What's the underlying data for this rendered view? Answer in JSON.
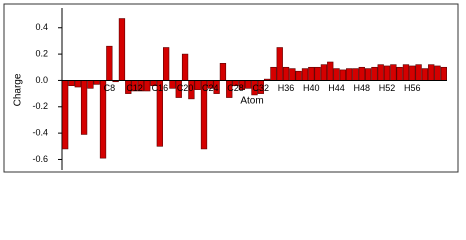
{
  "chart_data": {
    "type": "bar",
    "y_label": "Charge",
    "x_label": "Atom",
    "color": "#d40000",
    "categories": [
      null,
      null,
      null,
      null,
      null,
      null,
      null,
      "C8",
      null,
      null,
      null,
      "C12",
      null,
      null,
      null,
      "C16",
      null,
      null,
      null,
      "C20",
      null,
      null,
      null,
      "C24",
      null,
      null,
      null,
      "C28",
      null,
      null,
      null,
      "C32",
      null,
      null,
      null,
      "H36",
      null,
      null,
      null,
      "H40",
      null,
      null,
      null,
      "H44",
      null,
      null,
      null,
      "H48",
      null,
      null,
      null,
      "H52",
      null,
      null,
      null,
      "H56",
      null,
      null,
      null,
      null,
      null
    ],
    "values": [
      -0.52,
      -0.04,
      -0.05,
      -0.41,
      -0.06,
      -0.03,
      -0.59,
      0.26,
      -0.01,
      0.47,
      -0.1,
      -0.08,
      -0.08,
      -0.08,
      -0.04,
      -0.5,
      0.25,
      -0.06,
      -0.13,
      0.2,
      -0.14,
      -0.07,
      -0.52,
      -0.06,
      -0.1,
      0.13,
      -0.13,
      -0.04,
      -0.07,
      -0.06,
      -0.11,
      -0.1,
      0.01,
      0.1,
      0.25,
      0.1,
      0.09,
      0.07,
      0.09,
      0.1,
      0.1,
      0.12,
      0.14,
      0.09,
      0.08,
      0.09,
      0.09,
      0.1,
      0.09,
      0.1,
      0.12,
      0.11,
      0.12,
      0.1,
      0.12,
      0.11,
      0.12,
      0.09,
      0.12,
      0.11,
      0.1
    ],
    "ylim": [
      -0.68,
      0.55
    ],
    "yticks": [
      -0.6,
      -0.4,
      -0.2,
      {
        "value": 0,
        "label": "0.0"
      },
      0.2,
      0.4
    ]
  }
}
